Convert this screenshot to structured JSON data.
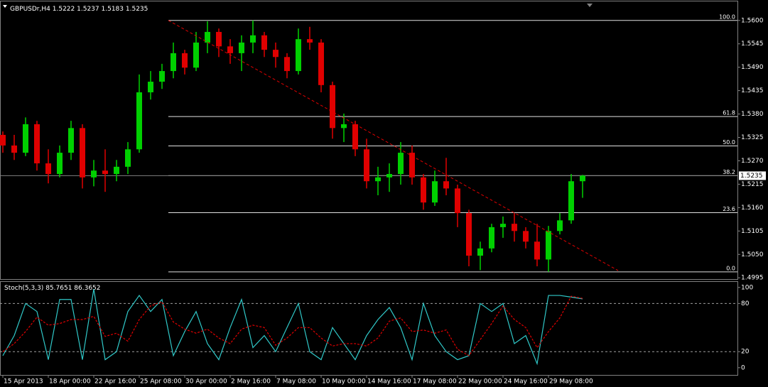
{
  "chart_data": [
    {
      "type": "candlestick",
      "title": "GBPUSDr,H4",
      "categories": [
        "15 Apr 2013",
        null,
        null,
        null,
        "18 Apr 00:00",
        null,
        null,
        null,
        "22 Apr 16:00",
        null,
        null,
        null,
        "25 Apr 08:00",
        null,
        null,
        null,
        "30 Apr 00:00",
        null,
        null,
        null,
        "2 May 16:00",
        null,
        null,
        null,
        "7 May 08:00",
        null,
        null,
        null,
        "10 May 00:00",
        null,
        null,
        null,
        "14 May 16:00",
        null,
        null,
        null,
        "17 May 08:00",
        null,
        null,
        null,
        "22 May 00:00",
        null,
        null,
        null,
        "24 May 16:00",
        null,
        null,
        null,
        "29 May 08:00",
        null,
        null,
        null
      ],
      "open": [
        1.5331,
        1.5306,
        1.5289,
        1.5356,
        1.5264,
        1.5239,
        1.5289,
        1.5347,
        1.5231,
        1.5247,
        1.5239,
        1.5256,
        1.5297,
        1.5431,
        1.5456,
        1.5481,
        1.5523,
        1.5489,
        1.5548,
        1.5573,
        1.5539,
        1.5523,
        1.5548,
        1.5565,
        1.5531,
        1.5514,
        1.5481,
        1.5556,
        1.5548,
        1.5448,
        1.5347,
        1.5356,
        1.5297,
        1.5222,
        1.5231,
        1.5239,
        1.5289,
        1.5231,
        1.5172,
        1.5222,
        1.5205,
        1.5147,
        1.5047,
        1.5064,
        1.5114,
        1.5122,
        1.5105,
        1.508,
        1.5038,
        1.5105,
        1.513,
        1.5222
      ],
      "high": [
        1.5339,
        1.5331,
        1.5372,
        1.5364,
        1.5297,
        1.5306,
        1.5364,
        1.5356,
        1.5272,
        1.5297,
        1.5272,
        1.5314,
        1.5473,
        1.5481,
        1.5498,
        1.5548,
        1.5531,
        1.5573,
        1.5598,
        1.5581,
        1.5556,
        1.5565,
        1.56,
        1.5573,
        1.5548,
        1.5523,
        1.5581,
        1.5585,
        1.5556,
        1.5456,
        1.5381,
        1.5364,
        1.5322,
        1.5256,
        1.5264,
        1.5314,
        1.5306,
        1.5239,
        1.5247,
        1.5277,
        1.5214,
        1.5155,
        1.508,
        1.5122,
        1.5139,
        1.5147,
        1.5114,
        1.5122,
        1.5117,
        1.5147,
        1.5239,
        1.5237
      ],
      "low": [
        1.5289,
        1.5272,
        1.5281,
        1.5247,
        1.5217,
        1.5231,
        1.5272,
        1.5205,
        1.521,
        1.5197,
        1.5222,
        1.5239,
        1.5289,
        1.5414,
        1.5439,
        1.5464,
        1.5473,
        1.5481,
        1.5523,
        1.5514,
        1.5498,
        1.5481,
        1.5523,
        1.5514,
        1.5489,
        1.5464,
        1.5473,
        1.5531,
        1.5431,
        1.5322,
        1.5314,
        1.5281,
        1.5205,
        1.5189,
        1.5197,
        1.5214,
        1.5214,
        1.5155,
        1.5164,
        1.5189,
        1.5114,
        1.5022,
        1.5013,
        1.5055,
        1.5089,
        1.508,
        1.5064,
        1.5022,
        1.5009,
        1.5097,
        1.5122,
        1.5183
      ],
      "close": [
        1.5306,
        1.5289,
        1.5356,
        1.5264,
        1.5239,
        1.5289,
        1.5347,
        1.5231,
        1.5247,
        1.5239,
        1.5256,
        1.5297,
        1.5431,
        1.5456,
        1.5481,
        1.5523,
        1.5489,
        1.5548,
        1.5573,
        1.5539,
        1.5523,
        1.5548,
        1.5565,
        1.5531,
        1.5514,
        1.5481,
        1.5556,
        1.5548,
        1.5448,
        1.5347,
        1.5356,
        1.5297,
        1.5222,
        1.5231,
        1.5239,
        1.5289,
        1.5231,
        1.5172,
        1.5222,
        1.5205,
        1.5147,
        1.5047,
        1.5064,
        1.5114,
        1.5122,
        1.5105,
        1.508,
        1.5038,
        1.5105,
        1.513,
        1.5222,
        1.5235
      ],
      "up_color": "#00d000",
      "down_color": "#e00000",
      "xlim": [
        -0.25,
        64.625
      ],
      "ylim": [
        1.4992,
        1.5628
      ],
      "yticks": [
        {
          "value": 1.56,
          "label": "1.5600"
        },
        1.5545,
        {
          "value": 1.549,
          "label": "1.5490"
        },
        1.5435,
        {
          "value": 1.538,
          "label": "1.5380"
        },
        1.5325,
        {
          "value": 1.527,
          "label": "1.5270"
        },
        1.5215,
        {
          "value": 1.516,
          "label": "1.5160"
        },
        1.5105,
        {
          "value": 1.505,
          "label": "1.5050"
        },
        1.4995
      ],
      "fib_start": 14.56,
      "fib_levels": [
        {
          "label": "100.0",
          "value": 1.56
        },
        {
          "label": "61.8",
          "value": 1.5374
        },
        {
          "label": "50.0",
          "value": 1.5305
        },
        {
          "label": "38.2",
          "value": 1.5235
        },
        {
          "label": "23.6",
          "value": 1.5148
        },
        {
          "label": "0.0",
          "value": 1.5009
        }
      ],
      "trendline": {
        "x": [
          14.56,
          54.13
        ],
        "y": [
          1.56,
          1.5012
        ],
        "color": "#e00000"
      }
    },
    {
      "type": "line",
      "title": "Stoch(5,3,3)",
      "xlim": [
        -0.25,
        64.625
      ],
      "ylim": [
        -9,
        106
      ],
      "yticks": [
        100,
        80,
        20,
        0
      ],
      "levels": [
        80,
        20
      ],
      "series": [
        {
          "color": "#30c8c8",
          "values": [
            15,
            40,
            80,
            70,
            10,
            85,
            85,
            10,
            98,
            10,
            20,
            70,
            90,
            70,
            85,
            15,
            45,
            70,
            30,
            10,
            50,
            85,
            25,
            40,
            20,
            50,
            80,
            20,
            10,
            50,
            30,
            10,
            40,
            60,
            75,
            50,
            10,
            80,
            40,
            20,
            10,
            15,
            80,
            70,
            80,
            30,
            40,
            5,
            90,
            90,
            88,
            85.7651
          ]
        },
        {
          "color": "#e00000",
          "dashed": true,
          "values": [
            20,
            30,
            45,
            63,
            53,
            55,
            60,
            60,
            64,
            39,
            43,
            33,
            60,
            77,
            82,
            57,
            48,
            43,
            48,
            37,
            30,
            48,
            53,
            50,
            28,
            37,
            50,
            50,
            37,
            27,
            30,
            30,
            27,
            37,
            58,
            62,
            45,
            47,
            43,
            47,
            23,
            15,
            35,
            55,
            77,
            60,
            50,
            25,
            45,
            62,
            89,
            86.3652
          ]
        }
      ]
    }
  ]
}
